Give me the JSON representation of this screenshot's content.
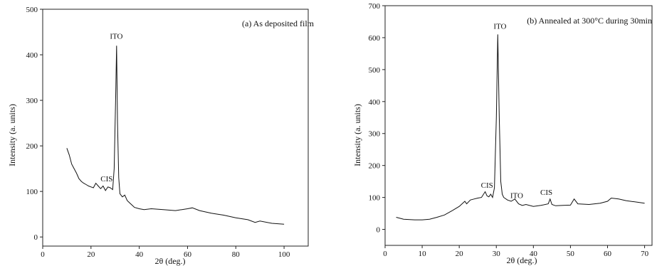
{
  "chart_data": [
    {
      "type": "line",
      "title": "(a)  As deposited film",
      "xlabel": "2θ (deg.)",
      "ylabel": "Intensity (a. units)",
      "xlim": [
        0,
        110
      ],
      "ylim": [
        -20,
        500
      ],
      "xticks": [
        "0",
        "20",
        "40",
        "60",
        "80",
        "100"
      ],
      "yticks": [
        "0",
        "100",
        "200",
        "300",
        "400",
        "500"
      ],
      "grid": false,
      "x": [
        10,
        11,
        12,
        13,
        14,
        15,
        16,
        17,
        18,
        19,
        20,
        21,
        22,
        23,
        24,
        25,
        26,
        27,
        28,
        29,
        29.6,
        30.2,
        30.6,
        31,
        31.5,
        32,
        33,
        34,
        35,
        36,
        37,
        38,
        40,
        42,
        45,
        50,
        55,
        60,
        62,
        65,
        70,
        75,
        80,
        85,
        88,
        90,
        95,
        100
      ],
      "y": [
        195,
        180,
        160,
        150,
        140,
        128,
        122,
        118,
        115,
        112,
        110,
        108,
        118,
        112,
        106,
        112,
        102,
        110,
        108,
        104,
        150,
        300,
        420,
        250,
        130,
        95,
        88,
        92,
        80,
        75,
        70,
        65,
        62,
        60,
        62,
        60,
        58,
        62,
        64,
        58,
        52,
        48,
        42,
        38,
        32,
        35,
        30,
        28
      ],
      "annotations": [
        {
          "text": "ITO",
          "x": 30.5,
          "y": 435
        },
        {
          "text": "CIS",
          "x": 26.5,
          "y": 122
        }
      ]
    },
    {
      "type": "line",
      "title": "(b) Annealed at 300°C during 30min",
      "xlabel": "2θ (deg.)",
      "ylabel": "Intensity (a. units)",
      "xlim": [
        0,
        72
      ],
      "ylim": [
        -50,
        700
      ],
      "xticks": [
        "0",
        "10",
        "20",
        "30",
        "40",
        "50",
        "60",
        "70"
      ],
      "yticks": [
        "0",
        "100",
        "200",
        "300",
        "400",
        "500",
        "600",
        "700"
      ],
      "grid": false,
      "x": [
        3,
        5,
        8,
        10,
        12,
        14,
        16,
        18,
        20,
        21.5,
        22,
        23,
        24,
        25,
        26,
        27,
        27.5,
        28,
        28.5,
        29,
        29.5,
        30,
        30.4,
        30.8,
        31.2,
        31.6,
        32,
        33,
        34,
        35,
        36,
        37,
        38,
        40,
        42,
        44,
        44.5,
        45,
        46,
        48,
        50,
        51,
        52,
        55,
        58,
        60,
        61,
        63,
        65,
        68,
        70
      ],
      "y": [
        38,
        32,
        30,
        30,
        32,
        38,
        45,
        58,
        72,
        88,
        80,
        92,
        95,
        98,
        100,
        118,
        105,
        102,
        110,
        100,
        130,
        350,
        610,
        350,
        150,
        110,
        100,
        92,
        88,
        95,
        80,
        75,
        78,
        72,
        75,
        80,
        95,
        78,
        74,
        75,
        76,
        95,
        80,
        78,
        82,
        88,
        98,
        95,
        90,
        85,
        82
      ],
      "annotations": [
        {
          "text": "ITO",
          "x": 31,
          "y": 628
        },
        {
          "text": "CIS",
          "x": 27.5,
          "y": 130
        },
        {
          "text": "ITO",
          "x": 35.5,
          "y": 98
        },
        {
          "text": "CIS",
          "x": 43.5,
          "y": 108
        }
      ]
    }
  ]
}
